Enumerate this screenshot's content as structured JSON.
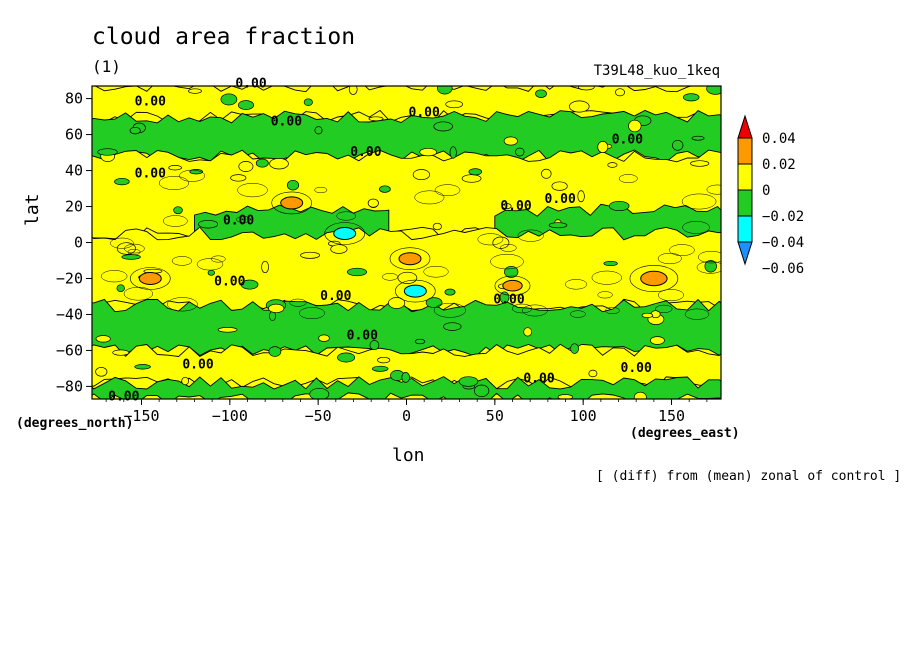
{
  "chart_data": {
    "type": "heatmap",
    "title": "cloud area fraction",
    "panel_label": "(1)",
    "run_label": "T39L48_kuo_1keq",
    "xlabel": "lon",
    "xunit": "(degrees_east)",
    "ylabel": "lat",
    "yunit": "(degrees_north)",
    "note": "[ (diff) from (mean) zonal of control ]",
    "xlim": [
      -178,
      178
    ],
    "ylim": [
      -87,
      87
    ],
    "xticks": [
      -150,
      -100,
      -50,
      0,
      50,
      100,
      150
    ],
    "xtick_labels": [
      "−150",
      "−100",
      "−50",
      "0",
      "50",
      "100",
      "150"
    ],
    "yticks": [
      -80,
      -60,
      -40,
      -20,
      0,
      20,
      40,
      60,
      80
    ],
    "ytick_labels": [
      "−80",
      "−60",
      "−40",
      "−20",
      "0",
      "20",
      "40",
      "60",
      "80"
    ],
    "contour_label": "0.00",
    "colorbar": {
      "levels": [
        -0.06,
        -0.04,
        -0.02,
        0,
        0.02,
        0.04
      ],
      "labels": [
        "−0.06",
        "−0.04",
        "−0.02",
        "0",
        "0.02",
        "0.04"
      ],
      "colors": [
        "#1e90ff",
        "#00ffff",
        "#22cc22",
        "#ffff00",
        "#ff9900",
        "#ee0000"
      ]
    },
    "colors": {
      "positive": "#ffff00",
      "negative": "#22cc22",
      "strong_positive": "#ff9900",
      "strong_negative": "#00ffff",
      "frame": "#000000"
    },
    "bands": [
      {
        "lat": [
          70,
          87
        ],
        "sign": "+"
      },
      {
        "lat": [
          48,
          70
        ],
        "sign": "-"
      },
      {
        "lat": [
          5,
          48
        ],
        "sign": "+"
      },
      {
        "lat": [
          -8,
          18
        ],
        "lon": [
          -120,
          -10
        ],
        "sign": "-"
      },
      {
        "lat": [
          -8,
          18
        ],
        "lon": [
          50,
          178
        ],
        "sign": "-"
      },
      {
        "lat": [
          -35,
          5
        ],
        "sign": "+"
      },
      {
        "lat": [
          -60,
          -35
        ],
        "sign": "-"
      },
      {
        "lat": [
          -78,
          -60
        ],
        "sign": "+"
      },
      {
        "lat": [
          -87,
          -78
        ],
        "sign": "-"
      }
    ],
    "anomalies": [
      {
        "lon": -65,
        "lat": 22,
        "value": 0.025
      },
      {
        "lon": -145,
        "lat": -20,
        "value": 0.025
      },
      {
        "lon": 2,
        "lat": -9,
        "value": 0.025
      },
      {
        "lon": 60,
        "lat": -24,
        "value": 0.022
      },
      {
        "lon": 140,
        "lat": -20,
        "value": 0.03
      },
      {
        "lon": -35,
        "lat": 5,
        "value": -0.025
      },
      {
        "lon": 5,
        "lat": -27,
        "value": -0.025
      }
    ],
    "contour_label_positions": [
      {
        "lon": -145,
        "lat": 78
      },
      {
        "lon": -88,
        "lat": 88
      },
      {
        "lon": -68,
        "lat": 67
      },
      {
        "lon": -23,
        "lat": 50
      },
      {
        "lon": 10,
        "lat": 72
      },
      {
        "lon": 125,
        "lat": 57
      },
      {
        "lon": -145,
        "lat": 38
      },
      {
        "lon": -95,
        "lat": 12
      },
      {
        "lon": 62,
        "lat": 20
      },
      {
        "lon": 87,
        "lat": 24
      },
      {
        "lon": -100,
        "lat": -22
      },
      {
        "lon": -40,
        "lat": -30
      },
      {
        "lon": 58,
        "lat": -32
      },
      {
        "lon": -25,
        "lat": -52
      },
      {
        "lon": -118,
        "lat": -68
      },
      {
        "lon": 75,
        "lat": -76
      },
      {
        "lon": 130,
        "lat": -70
      },
      {
        "lon": -160,
        "lat": -86
      }
    ]
  }
}
